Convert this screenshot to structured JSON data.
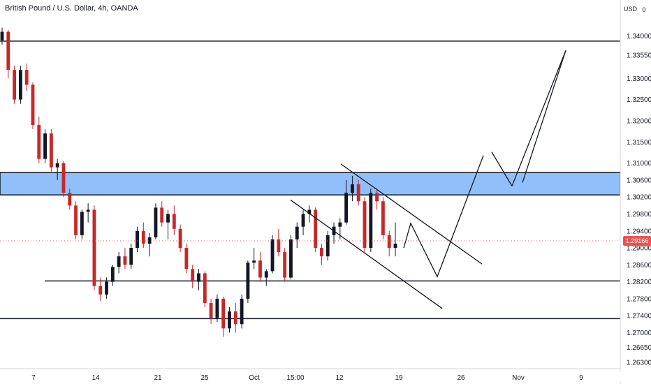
{
  "chart_data": {
    "type": "candlestick",
    "title": "British Pound / U.S. Dollar, 4h, OANDA",
    "currency_label": "USD",
    "y_ticks": [
      "1.34000",
      "1.33550",
      "1.33000",
      "1.32500",
      "1.32000",
      "1.31500",
      "1.31000",
      "1.30600",
      "1.30200",
      "1.29800",
      "1.29400",
      "1.29000",
      "1.28600",
      "1.28200",
      "1.27800",
      "1.27400",
      "1.27000",
      "1.26650",
      "1.26300"
    ],
    "x_ticks": [
      "7",
      "14",
      "21",
      "25",
      "Oct",
      "15:00",
      "12",
      "19",
      "26",
      "Nov",
      "9"
    ],
    "ylim": [
      1.2615,
      1.3485
    ],
    "last_price": "1.29166",
    "colors": {
      "up": "#131722",
      "down": "#c62828",
      "zone": "#90bff9",
      "price_line": "#ef5350",
      "last_price_badge": "#ef5350"
    },
    "zone": [
      1.3025,
      1.3078
    ],
    "support_levels": [
      1.3388,
      1.2822,
      1.2733
    ],
    "candles": [
      [
        1.339,
        1.342,
        1.338,
        1.341
      ],
      [
        1.341,
        1.3415,
        1.33,
        1.332
      ],
      [
        1.332,
        1.333,
        1.324,
        1.325
      ],
      [
        1.325,
        1.333,
        1.324,
        1.332
      ],
      [
        1.332,
        1.3335,
        1.327,
        1.3285
      ],
      [
        1.3285,
        1.329,
        1.318,
        1.319
      ],
      [
        1.319,
        1.321,
        1.31,
        1.311
      ],
      [
        1.311,
        1.318,
        1.31,
        1.317
      ],
      [
        1.317,
        1.318,
        1.308,
        1.309
      ],
      [
        1.309,
        1.311,
        1.306,
        1.31
      ],
      [
        1.31,
        1.3105,
        1.302,
        1.303
      ],
      [
        1.303,
        1.304,
        1.299,
        1.3
      ],
      [
        1.3,
        1.301,
        1.292,
        1.293
      ],
      [
        1.293,
        1.299,
        1.292,
        1.2985
      ],
      [
        1.2985,
        1.3005,
        1.296,
        1.299
      ],
      [
        1.299,
        1.3,
        1.28,
        1.281
      ],
      [
        1.281,
        1.283,
        1.2775,
        1.279
      ],
      [
        1.279,
        1.283,
        1.278,
        1.282
      ],
      [
        1.282,
        1.286,
        1.281,
        1.2855
      ],
      [
        1.2855,
        1.289,
        1.284,
        1.288
      ],
      [
        1.288,
        1.29,
        1.285,
        1.286
      ],
      [
        1.286,
        1.291,
        1.285,
        1.29
      ],
      [
        1.29,
        1.295,
        1.289,
        1.294
      ],
      [
        1.294,
        1.296,
        1.29,
        1.291
      ],
      [
        1.291,
        1.2935,
        1.288,
        1.2925
      ],
      [
        1.2925,
        1.3005,
        1.292,
        1.2995
      ],
      [
        1.2995,
        1.301,
        1.295,
        1.296
      ],
      [
        1.296,
        1.299,
        1.292,
        1.298
      ],
      [
        1.298,
        1.3,
        1.293,
        1.2945
      ],
      [
        1.2945,
        1.2955,
        1.289,
        1.29
      ],
      [
        1.29,
        1.291,
        1.284,
        1.285
      ],
      [
        1.285,
        1.286,
        1.2805,
        1.282
      ],
      [
        1.282,
        1.285,
        1.28,
        1.284
      ],
      [
        1.284,
        1.2845,
        1.276,
        1.277
      ],
      [
        1.277,
        1.278,
        1.272,
        1.2735
      ],
      [
        1.2735,
        1.279,
        1.2725,
        1.278
      ],
      [
        1.278,
        1.2785,
        1.269,
        1.271
      ],
      [
        1.271,
        1.276,
        1.27,
        1.275
      ],
      [
        1.275,
        1.277,
        1.27,
        1.272
      ],
      [
        1.272,
        1.279,
        1.271,
        1.278
      ],
      [
        1.278,
        1.287,
        1.277,
        1.2865
      ],
      [
        1.2865,
        1.29,
        1.285,
        1.287
      ],
      [
        1.287,
        1.289,
        1.282,
        1.283
      ],
      [
        1.283,
        1.285,
        1.281,
        1.2845
      ],
      [
        1.2845,
        1.293,
        1.284,
        1.292
      ],
      [
        1.292,
        1.2945,
        1.288,
        1.289
      ],
      [
        1.289,
        1.29,
        1.282,
        1.283
      ],
      [
        1.283,
        1.293,
        1.2825,
        1.292
      ],
      [
        1.292,
        1.296,
        1.29,
        1.295
      ],
      [
        1.295,
        1.299,
        1.293,
        1.298
      ],
      [
        1.298,
        1.3,
        1.296,
        1.299
      ],
      [
        1.299,
        1.2995,
        1.289,
        1.29
      ],
      [
        1.29,
        1.291,
        1.286,
        1.288
      ],
      [
        1.288,
        1.294,
        1.287,
        1.293
      ],
      [
        1.293,
        1.296,
        1.291,
        1.295
      ],
      [
        1.295,
        1.297,
        1.292,
        1.296
      ],
      [
        1.296,
        1.306,
        1.2955,
        1.303
      ],
      [
        1.303,
        1.307,
        1.301,
        1.305
      ],
      [
        1.305,
        1.306,
        1.3,
        1.301
      ],
      [
        1.301,
        1.302,
        1.289,
        1.29
      ],
      [
        1.29,
        1.304,
        1.289,
        1.303
      ],
      [
        1.303,
        1.304,
        1.299,
        1.301
      ],
      [
        1.301,
        1.302,
        1.292,
        1.293
      ],
      [
        1.293,
        1.294,
        1.288,
        1.29
      ],
      [
        1.29,
        1.296,
        1.288,
        1.291
      ]
    ]
  }
}
